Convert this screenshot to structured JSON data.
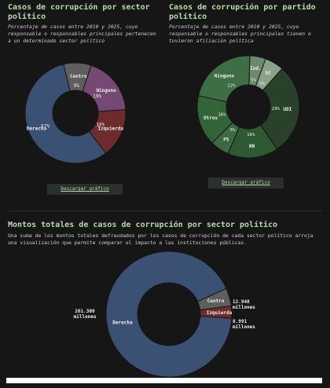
{
  "sector_chart": {
    "title": "Casos de corrupción por sector político",
    "subtitle": "Porcentaje de casos entre 2010 y 2025, cuyo responsable o responsables principales pertenecen a un determinado sector político",
    "button_label": "Descargar gráfico"
  },
  "party_chart": {
    "title": "Casos de corrupción por partido político",
    "subtitle": "Porcentaje de casos entre 2010 y 2025, cuyo responsable o responsables principales tienen o tuvieron afiliación política",
    "button_label": "Descargar gráfico"
  },
  "amount_chart": {
    "title": "Montos totales de casos de corrupción por sector político",
    "subtitle": "Una suma de los montos totales defraudados por los casos de corrupción de cada sector político arroja una visualización que permite comparar el impacto a las instituciones públicas."
  },
  "chart_data": [
    {
      "type": "pie",
      "id": "sector",
      "series": [
        {
          "name": "Derecha",
          "value": 57,
          "pct_label": "57%",
          "color": "#3b5174"
        },
        {
          "name": "Izquierda",
          "value": 16,
          "pct_label": "16%",
          "color": "#6e2b2b"
        },
        {
          "name": "Ninguno",
          "value": 19,
          "pct_label": "19%",
          "color": "#744a74"
        },
        {
          "name": "Centro",
          "value": 9,
          "pct_label": "9%",
          "color": "#5e5e5e"
        }
      ]
    },
    {
      "type": "pie",
      "id": "party",
      "series": [
        {
          "name": "Ninguno",
          "value": 22,
          "pct_label": "22%",
          "color": "#3d6e45"
        },
        {
          "name": "Ind.",
          "value": 5,
          "pct_label": "5%",
          "color": "#6c8a6c"
        },
        {
          "name": "DC",
          "value": 6,
          "pct_label": "6%",
          "color": "#8aa28a"
        },
        {
          "name": "UDI",
          "value": 29,
          "pct_label": "29%",
          "color": "#284128"
        },
        {
          "name": "RN",
          "value": 16,
          "pct_label": "16%",
          "color": "#2d5a33"
        },
        {
          "name": "PS",
          "value": 6,
          "pct_label": "6%",
          "color": "#3b6a42"
        },
        {
          "name": "Otros",
          "value": 16,
          "pct_label": "16%",
          "color": "#326437"
        }
      ]
    },
    {
      "type": "pie",
      "id": "amount",
      "series": [
        {
          "name": "Derecha",
          "value": 261.3,
          "value_label": "261.300 millones",
          "color": "#3b5174"
        },
        {
          "name": "Izquierda",
          "value": 8.991,
          "value_label": "8.991 millones",
          "color": "#6e2b2b"
        },
        {
          "name": "Centro",
          "value": 12.948,
          "value_label": "12.948 millones",
          "color": "#5e5e5e"
        }
      ]
    }
  ]
}
